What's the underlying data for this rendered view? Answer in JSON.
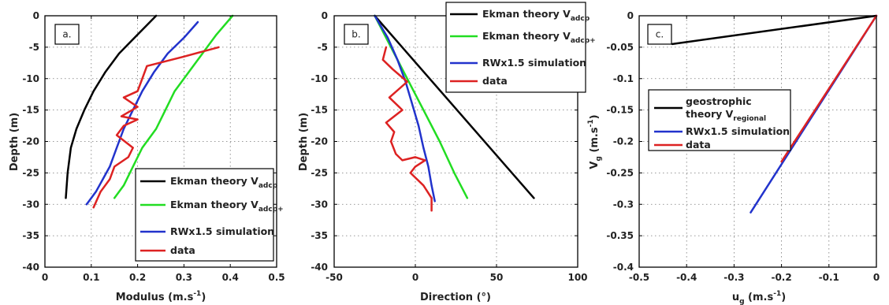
{
  "colors": {
    "black": "#000000",
    "green": "#22dd22",
    "blue": "#2233cc",
    "red": "#dd2222"
  },
  "chart_data": [
    {
      "type": "line",
      "panel_label": "a.",
      "xlabel": "Modulus (m.s",
      "xlabel_sup": "-1",
      "xlabel_end": ")",
      "ylabel": "Depth (m)",
      "xlim": [
        0,
        0.5
      ],
      "ylim": [
        -40,
        0
      ],
      "xticks": [
        0,
        0.1,
        0.2,
        0.3,
        0.4,
        0.5
      ],
      "yticks": [
        0,
        -5,
        -10,
        -15,
        -20,
        -25,
        -30,
        -35,
        -40
      ],
      "xtick_labels": [
        "0",
        "0.1",
        "0.2",
        "0.3",
        "0.4",
        "0.5"
      ],
      "ytick_labels": [
        "0",
        "-5",
        "-10",
        "-15",
        "-20",
        "-25",
        "-30",
        "-35",
        "-40"
      ],
      "grid": true,
      "legend_position": "bottom-right",
      "series": [
        {
          "name": "Ekman theory V",
          "name_sub": "adcp",
          "color": "black",
          "x": [
            0.24,
            0.2,
            0.16,
            0.13,
            0.105,
            0.085,
            0.068,
            0.056,
            0.049,
            0.045
          ],
          "y": [
            0,
            -3,
            -6,
            -9,
            -12,
            -15,
            -18,
            -21,
            -25,
            -29
          ]
        },
        {
          "name": "Ekman theory V",
          "name_sub": "adcp+",
          "color": "green",
          "x": [
            0.405,
            0.37,
            0.34,
            0.31,
            0.28,
            0.26,
            0.24,
            0.21,
            0.19,
            0.17,
            0.15
          ],
          "y": [
            0,
            -3,
            -6,
            -9,
            -12,
            -15,
            -18,
            -21,
            -24,
            -27,
            -29
          ]
        },
        {
          "name": "RWx1.5 simulation",
          "color": "blue",
          "x": [
            0.33,
            0.3,
            0.265,
            0.235,
            0.21,
            0.19,
            0.17,
            0.155,
            0.14,
            0.125,
            0.11,
            0.09
          ],
          "y": [
            -1,
            -3.5,
            -6,
            -9,
            -12,
            -15,
            -18,
            -21,
            -24,
            -26,
            -28,
            -30
          ]
        },
        {
          "name": "data",
          "color": "red",
          "x": [
            0.375,
            0.3,
            0.22,
            0.21,
            0.2,
            0.17,
            0.2,
            0.165,
            0.2,
            0.17,
            0.155,
            0.19,
            0.18,
            0.15,
            0.14,
            0.12,
            0.105
          ],
          "y": [
            -5,
            -6.5,
            -8,
            -10,
            -12,
            -13,
            -14.5,
            -16,
            -16.5,
            -17.5,
            -19,
            -21,
            -22.5,
            -24,
            -26,
            -28,
            -30.5
          ]
        }
      ]
    },
    {
      "type": "line",
      "panel_label": "b.",
      "xlabel": "Direction (°)",
      "ylabel": "Depth (m)",
      "xlim": [
        -50,
        100
      ],
      "ylim": [
        -40,
        0
      ],
      "xticks": [
        -50,
        0,
        50,
        100
      ],
      "yticks": [
        0,
        -5,
        -10,
        -15,
        -20,
        -25,
        -30,
        -35,
        -40
      ],
      "xtick_labels": [
        "-50",
        "0",
        "50",
        "100"
      ],
      "ytick_labels": [
        "0",
        "-5",
        "-10",
        "-15",
        "-20",
        "-25",
        "-30",
        "-35",
        "-40"
      ],
      "grid": true,
      "legend_position": "top-right",
      "series": [
        {
          "name": "Ekman theory V",
          "name_sub": "adcp",
          "color": "black",
          "x": [
            -25,
            73
          ],
          "y": [
            0,
            -29
          ]
        },
        {
          "name": "Ekman theory V",
          "name_sub": "adcp+",
          "color": "green",
          "x": [
            -25,
            -15,
            -5,
            5,
            15,
            24,
            32
          ],
          "y": [
            0,
            -5,
            -10,
            -15,
            -20,
            -25,
            -29
          ]
        },
        {
          "name": "RWx1.5 simulation",
          "color": "blue",
          "x": [
            -25,
            -17,
            -11,
            -6,
            -2,
            2,
            5,
            8,
            10,
            12
          ],
          "y": [
            0,
            -3.5,
            -7,
            -10.5,
            -14,
            -17.5,
            -21,
            -24,
            -27,
            -29.5
          ]
        },
        {
          "name": "data",
          "color": "red",
          "x": [
            -18,
            -20,
            -14,
            -5,
            -16,
            -8,
            -18,
            -13,
            -15,
            -12,
            -8,
            0,
            6,
            0,
            -3,
            5,
            10,
            10
          ],
          "y": [
            -5,
            -7,
            -8.5,
            -10.5,
            -13,
            -15,
            -17,
            -18.5,
            -20,
            -22,
            -23,
            -22.5,
            -23,
            -24,
            -25,
            -27,
            -29,
            -31
          ]
        }
      ]
    },
    {
      "type": "line",
      "panel_label": "c.",
      "xlabel": "u",
      "xlabel_sub": "g",
      "xlabel_rest": " (m.s",
      "xlabel_sup": "-1",
      "xlabel_end": ")",
      "ylabel": "V",
      "ylabel_sub": "g",
      "ylabel_rest": " (m.s",
      "ylabel_sup": "-1",
      "ylabel_end": ")",
      "xlim": [
        -0.5,
        0
      ],
      "ylim": [
        -0.4,
        0
      ],
      "xticks": [
        -0.5,
        -0.4,
        -0.3,
        -0.2,
        -0.1,
        0
      ],
      "yticks": [
        0,
        -0.05,
        -0.1,
        -0.15,
        -0.2,
        -0.25,
        -0.3,
        -0.35,
        -0.4
      ],
      "xtick_labels": [
        "-0.5",
        "-0.4",
        "-0.3",
        "-0.2",
        "-0.1",
        "0"
      ],
      "ytick_labels": [
        "0",
        "-0.05",
        "-0.1",
        "-0.15",
        "-0.2",
        "-0.25",
        "-0.3",
        "-0.35",
        "-0.4"
      ],
      "grid": true,
      "legend_position": "center-left",
      "series": [
        {
          "name": "geostrophic",
          "name_line2": "theory V",
          "name_sub": "regional",
          "color": "black",
          "x": [
            -0.43,
            0
          ],
          "y": [
            -0.045,
            0
          ]
        },
        {
          "name": "RWx1.5 simulation",
          "color": "blue",
          "x": [
            -0.265,
            0
          ],
          "y": [
            -0.313,
            0
          ]
        },
        {
          "name": "data",
          "color": "red",
          "x": [
            -0.2,
            0
          ],
          "y": [
            -0.232,
            0
          ]
        }
      ]
    }
  ]
}
